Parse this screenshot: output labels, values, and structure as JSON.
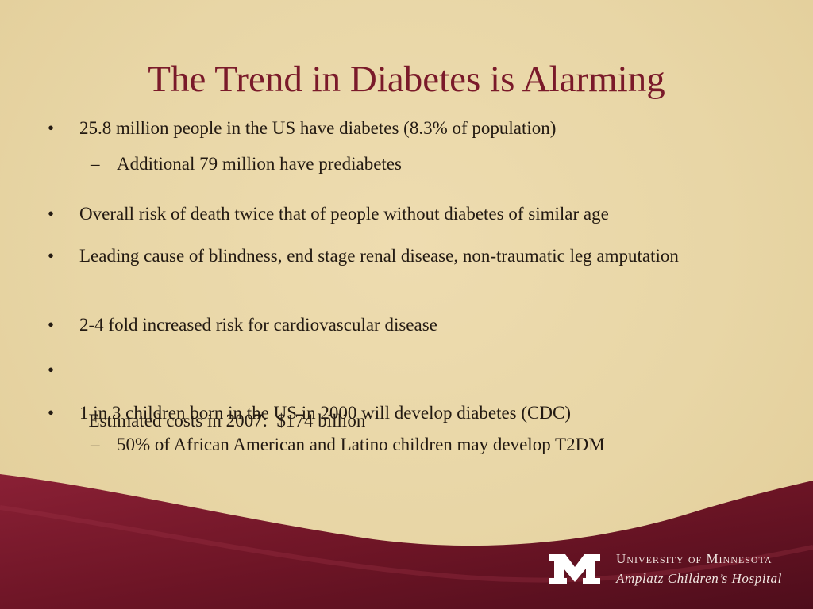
{
  "slide": {
    "title": "The Trend in Diabetes is Alarming",
    "bullet_glyph": "•",
    "dash_glyph": "–",
    "items": [
      {
        "level": 1,
        "text": "25.8 million people in the US have diabetes (8.3% of population)"
      },
      {
        "level": 2,
        "text": "Additional 79 million have prediabetes"
      },
      {
        "level": 1,
        "text": "Overall risk of death twice that of people without diabetes of similar age"
      },
      {
        "level": 1,
        "text": "Leading cause of blindness, end stage renal disease, non-traumatic leg amputation"
      },
      {
        "level": 1,
        "text": "2-4 fold increased risk for cardiovascular disease"
      },
      {
        "level": 1,
        "text": "Estimated costs in 2007:  $174 billion"
      },
      {
        "level": 1,
        "text": "1 in 3 children born in the US in 2000 will develop diabetes (CDC)"
      },
      {
        "level": 2,
        "text": "50% of African American and Latino children may develop T2DM"
      }
    ]
  },
  "footer": {
    "logo_icon": "university-m-logo-icon",
    "university_name": "University of Minnesota",
    "hospital_name": "Amplatz Children’s Hospital"
  },
  "colors": {
    "background": "#e8d6a6",
    "title": "#7a1a2a",
    "maroon": "#6e1526",
    "footer_text": "#f2e7e2"
  }
}
